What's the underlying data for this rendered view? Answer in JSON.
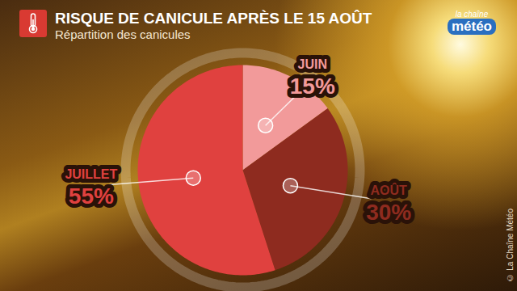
{
  "chart_data": {
    "type": "pie",
    "title": "RISQUE DE CANICULE APRÈS LE 15 AOÛT",
    "subtitle": "Répartition des canicules",
    "categories": [
      "JUIN",
      "AOÛT",
      "JUILLET"
    ],
    "values": [
      15,
      30,
      55
    ],
    "value_labels": [
      "15%",
      "30%",
      "55%"
    ],
    "colors": [
      "#f29a9a",
      "#8e2b1f",
      "#e0413f"
    ],
    "data_labels": true,
    "logo": [
      "la chaîne",
      "météo"
    ],
    "credit": "© La Chaîne Météo"
  }
}
